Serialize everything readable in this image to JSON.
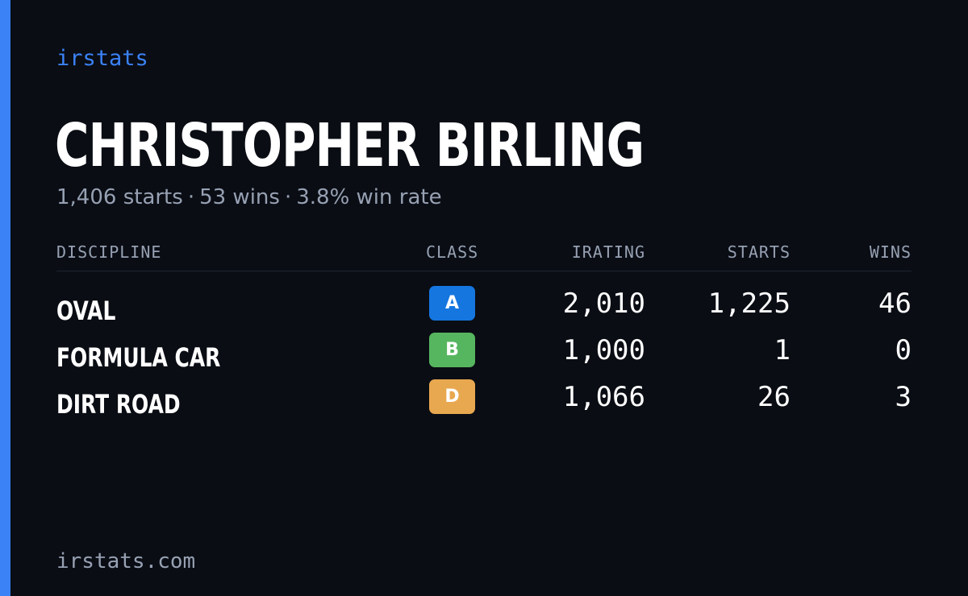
{
  "colors": {
    "background": "#0a0d14",
    "accent": "#3b82f6",
    "muted_text": "#97a1b3",
    "class_a": "#1576e0",
    "class_b": "#56b65f",
    "class_d": "#e8a84f"
  },
  "brand": "irstats",
  "driver": {
    "name": "CHRISTOPHER BIRLING",
    "starts": "1,406 starts",
    "wins": "53 wins",
    "win_rate": "3.8% win rate",
    "separator": "·"
  },
  "table": {
    "headers": {
      "discipline": "DISCIPLINE",
      "class": "CLASS",
      "irating": "IRATING",
      "starts": "STARTS",
      "wins": "WINS"
    },
    "rows": [
      {
        "discipline": "OVAL",
        "class": "A",
        "class_color": "#1576e0",
        "irating": "2,010",
        "starts": "1,225",
        "wins": "46"
      },
      {
        "discipline": "FORMULA CAR",
        "class": "B",
        "class_color": "#56b65f",
        "irating": "1,000",
        "starts": "1",
        "wins": "0"
      },
      {
        "discipline": "DIRT ROAD",
        "class": "D",
        "class_color": "#e8a84f",
        "irating": "1,066",
        "starts": "26",
        "wins": "3"
      }
    ]
  },
  "footer": {
    "url": "irstats.com"
  }
}
